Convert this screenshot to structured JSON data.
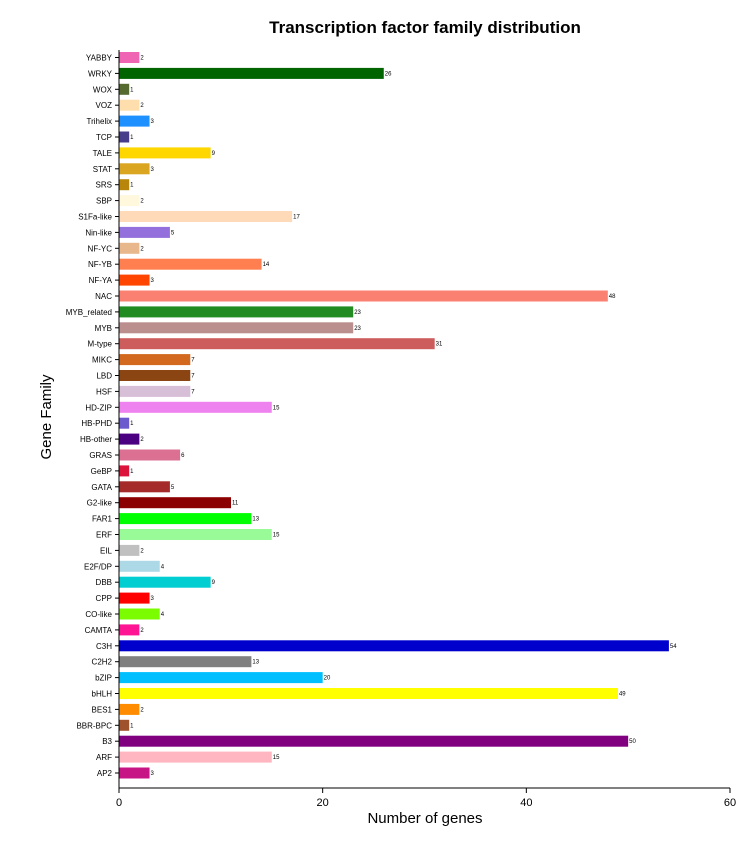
{
  "chart_data": {
    "type": "bar",
    "orientation": "horizontal",
    "title": "Transcription factor family distribution",
    "xlabel": "Number of genes",
    "ylabel": "Gene Family",
    "xlim": [
      0,
      60
    ],
    "xticks": [
      0,
      20,
      40,
      60
    ],
    "grid": false,
    "legend": "none",
    "categories": [
      "YABBY",
      "WRKY",
      "WOX",
      "VOZ",
      "Trihelix",
      "TCP",
      "TALE",
      "STAT",
      "SRS",
      "SBP",
      "S1Fa-like",
      "Nin-like",
      "NF-YC",
      "NF-YB",
      "NF-YA",
      "NAC",
      "MYB_related",
      "MYB",
      "M-type",
      "MIKC",
      "LBD",
      "HSF",
      "HD-ZIP",
      "HB-PHD",
      "HB-other",
      "GRAS",
      "GeBP",
      "GATA",
      "G2-like",
      "FAR1",
      "ERF",
      "EIL",
      "E2F/DP",
      "DBB",
      "CPP",
      "CO-like",
      "CAMTA",
      "C3H",
      "C2H2",
      "bZIP",
      "bHLH",
      "BES1",
      "BBR-BPC",
      "B3",
      "ARF",
      "AP2"
    ],
    "values": [
      2,
      26,
      1,
      2,
      3,
      1,
      9,
      3,
      1,
      2,
      17,
      5,
      2,
      14,
      3,
      48,
      23,
      23,
      31,
      7,
      7,
      7,
      15,
      1,
      2,
      6,
      1,
      5,
      11,
      13,
      15,
      2,
      4,
      9,
      3,
      4,
      2,
      54,
      13,
      20,
      49,
      2,
      1,
      50,
      15,
      3
    ],
    "colors": [
      "#f064b4",
      "#006400",
      "#556b2f",
      "#ffdead",
      "#1e90ff",
      "#483d8b",
      "#ffd700",
      "#daa520",
      "#b8860b",
      "#fff8dc",
      "#ffdab9",
      "#9370db",
      "#e8b88c",
      "#ff7f50",
      "#ff4500",
      "#fa8072",
      "#228b22",
      "#bc8f8f",
      "#cd5c5c",
      "#d2691e",
      "#8b4513",
      "#d8bfd8",
      "#ee82ee",
      "#6a5acd",
      "#4b0082",
      "#db7093",
      "#dc143c",
      "#a52a2a",
      "#8b0000",
      "#00ff00",
      "#98fb98",
      "#c0c0c0",
      "#add8e6",
      "#00ced1",
      "#ff0000",
      "#7cfc00",
      "#ff1493",
      "#0000cd",
      "#808080",
      "#00bfff",
      "#ffff00",
      "#ff8c00",
      "#a0522d",
      "#800080",
      "#ffb6c1",
      "#c71585"
    ]
  }
}
